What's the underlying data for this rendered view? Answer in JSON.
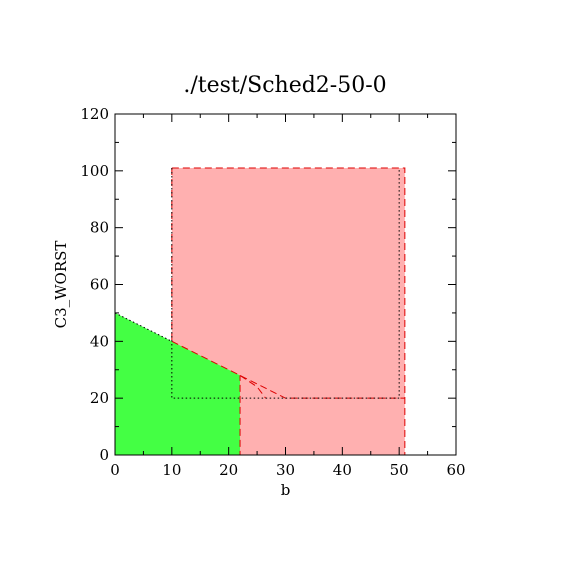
{
  "chart_data": {
    "type": "area",
    "title": "./test/Sched2-50-0",
    "xlabel": "b",
    "ylabel": "C3_WORST",
    "xlim": [
      0,
      60
    ],
    "ylim": [
      0,
      120
    ],
    "xticks": [
      0,
      10,
      20,
      30,
      40,
      50,
      60
    ],
    "yticks": [
      0,
      20,
      40,
      60,
      80,
      100,
      120
    ],
    "grid": false,
    "colors": {
      "feasible_green": "#44ff44",
      "region_pink": "#ffb0b0",
      "boundary_red": "#dd0000",
      "axis": "#000000"
    },
    "regions": [
      {
        "fill": "region_pink",
        "polygons": [
          [
            [
              10,
              101
            ],
            [
              51,
              101
            ],
            [
              51,
              0
            ],
            [
              22,
              0
            ],
            [
              22,
              28
            ],
            [
              10,
              40
            ]
          ]
        ]
      },
      {
        "fill": "feasible_green",
        "polygons": [
          [
            [
              0,
              0
            ],
            [
              0,
              50
            ],
            [
              10,
              40
            ],
            [
              22,
              28
            ],
            [
              22,
              0
            ]
          ]
        ]
      }
    ],
    "lines": [
      {
        "style": "dashed",
        "color": "boundary_red",
        "points": [
          [
            10,
            101
          ],
          [
            51,
            101
          ],
          [
            51,
            0
          ],
          [
            22,
            0
          ],
          [
            22,
            28
          ]
        ]
      },
      {
        "style": "dashed",
        "color": "boundary_red",
        "points": [
          [
            10,
            40
          ],
          [
            22,
            28
          ],
          [
            30,
            20
          ],
          [
            51,
            20
          ]
        ]
      },
      {
        "style": "dashed",
        "color": "boundary_red",
        "points": [
          [
            22,
            28
          ],
          [
            25,
            24
          ],
          [
            26.5,
            20
          ]
        ]
      },
      {
        "style": "dashed",
        "color": "boundary_red",
        "points": [
          [
            10,
            101
          ],
          [
            10,
            40
          ]
        ]
      },
      {
        "style": "dotted",
        "color": "axis",
        "points": [
          [
            10,
            101
          ],
          [
            10,
            20
          ],
          [
            50,
            20
          ],
          [
            50,
            101
          ]
        ]
      },
      {
        "style": "dotted",
        "color": "axis",
        "points": [
          [
            0,
            50
          ],
          [
            10,
            40
          ]
        ]
      }
    ]
  }
}
